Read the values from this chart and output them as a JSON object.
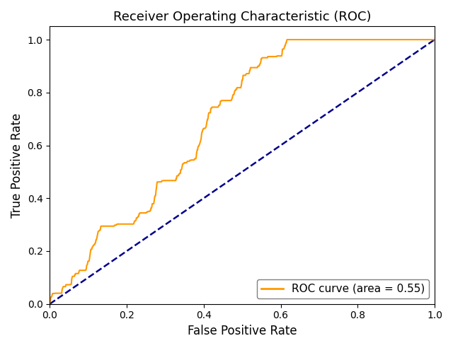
{
  "title": "Receiver Operating Characteristic (ROC)",
  "xlabel": "False Positive Rate",
  "ylabel": "True Positive Rate",
  "legend_label": "ROC curve (area = 0.55)",
  "roc_color": "#ff9900",
  "diagonal_color": "#00008b",
  "roc_linewidth": 1.5,
  "diagonal_linewidth": 1.8,
  "diagonal_linestyle": "--",
  "xlim": [
    0.0,
    1.0
  ],
  "ylim": [
    0.0,
    1.05
  ],
  "figsize": [
    6.4,
    4.92
  ],
  "dpi": 100,
  "legend_loc": "lower right",
  "title_fontsize": 13
}
